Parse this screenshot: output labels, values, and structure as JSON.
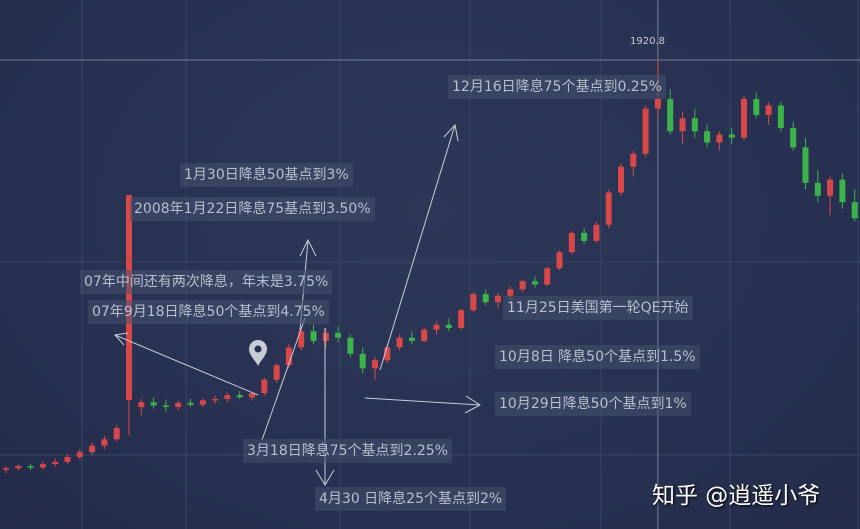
{
  "chart_data": {
    "type": "candlestick",
    "title": "",
    "peak_label": "1920.8",
    "up_color": "#d94848",
    "down_color": "#3cb44a",
    "background_color": "#283150",
    "grid": true,
    "candles_ohlc": [
      [
        650,
        662,
        640,
        655
      ],
      [
        655,
        668,
        648,
        662
      ],
      [
        662,
        670,
        650,
        658
      ],
      [
        658,
        675,
        652,
        668
      ],
      [
        668,
        685,
        660,
        675
      ],
      [
        675,
        700,
        668,
        690
      ],
      [
        690,
        715,
        682,
        705
      ],
      [
        705,
        735,
        698,
        725
      ],
      [
        725,
        755,
        715,
        745
      ],
      [
        745,
        790,
        738,
        780
      ],
      [
        867,
        1502,
        757,
        1502
      ],
      [
        845,
        870,
        820,
        860
      ],
      [
        860,
        875,
        840,
        850
      ],
      [
        850,
        868,
        830,
        845
      ],
      [
        845,
        865,
        835,
        858
      ],
      [
        858,
        870,
        845,
        852
      ],
      [
        852,
        872,
        845,
        866
      ],
      [
        866,
        880,
        855,
        870
      ],
      [
        870,
        890,
        860,
        882
      ],
      [
        882,
        895,
        870,
        875
      ],
      [
        875,
        892,
        865,
        888
      ],
      [
        888,
        935,
        880,
        930
      ],
      [
        930,
        980,
        920,
        975
      ],
      [
        975,
        1040,
        965,
        1030
      ],
      [
        1030,
        1090,
        1020,
        1080
      ],
      [
        1080,
        1100,
        1040,
        1050
      ],
      [
        1050,
        1090,
        1030,
        1075
      ],
      [
        1075,
        1095,
        1045,
        1060
      ],
      [
        1060,
        1070,
        1000,
        1010
      ],
      [
        1010,
        1030,
        950,
        965
      ],
      [
        965,
        1000,
        930,
        990
      ],
      [
        990,
        1040,
        980,
        1030
      ],
      [
        1030,
        1070,
        1020,
        1060
      ],
      [
        1060,
        1080,
        1040,
        1050
      ],
      [
        1050,
        1090,
        1045,
        1085
      ],
      [
        1085,
        1110,
        1070,
        1100
      ],
      [
        1100,
        1120,
        1080,
        1090
      ],
      [
        1090,
        1150,
        1085,
        1145
      ],
      [
        1145,
        1200,
        1140,
        1195
      ],
      [
        1195,
        1210,
        1160,
        1170
      ],
      [
        1170,
        1200,
        1150,
        1190
      ],
      [
        1190,
        1220,
        1175,
        1210
      ],
      [
        1210,
        1240,
        1200,
        1235
      ],
      [
        1235,
        1250,
        1215,
        1225
      ],
      [
        1225,
        1280,
        1220,
        1275
      ],
      [
        1275,
        1330,
        1270,
        1325
      ],
      [
        1325,
        1390,
        1320,
        1385
      ],
      [
        1385,
        1400,
        1350,
        1360
      ],
      [
        1360,
        1420,
        1355,
        1410
      ],
      [
        1410,
        1520,
        1400,
        1510
      ],
      [
        1510,
        1600,
        1500,
        1590
      ],
      [
        1590,
        1640,
        1560,
        1630
      ],
      [
        1630,
        1780,
        1620,
        1770
      ],
      [
        1770,
        1920.8,
        1750,
        1800
      ],
      [
        1800,
        1830,
        1690,
        1700
      ],
      [
        1700,
        1760,
        1660,
        1740
      ],
      [
        1740,
        1770,
        1680,
        1700
      ],
      [
        1700,
        1720,
        1650,
        1665
      ],
      [
        1665,
        1700,
        1640,
        1690
      ],
      [
        1690,
        1710,
        1660,
        1680
      ],
      [
        1680,
        1810,
        1670,
        1800
      ],
      [
        1800,
        1820,
        1740,
        1750
      ],
      [
        1750,
        1790,
        1720,
        1780
      ],
      [
        1780,
        1790,
        1700,
        1710
      ],
      [
        1710,
        1730,
        1640,
        1650
      ],
      [
        1650,
        1680,
        1520,
        1540
      ],
      [
        1540,
        1580,
        1480,
        1500
      ],
      [
        1500,
        1560,
        1440,
        1550
      ],
      [
        1550,
        1570,
        1460,
        1480
      ],
      [
        1480,
        1520,
        1420,
        1430
      ]
    ],
    "annotations": [
      "12月16日降息75个基点到0.25%",
      "1月30日降息50基点到3%",
      "2008年1月22日降息75基点到3.50%",
      "07年中间还有两次降息，年末是3.75%",
      "07年9月18日降息50个基点到4.75%",
      "11月25日美国第一轮QE开始",
      "10月8日 降息50个基点到1.5%",
      "10月29日降息50个基点到1%",
      "3月18日降息75个基点到2.25%",
      "4月30 日降息25个基点到2%"
    ]
  },
  "watermark": "知乎 @逍遥小爷",
  "marker_icon": "map-pin-icon"
}
